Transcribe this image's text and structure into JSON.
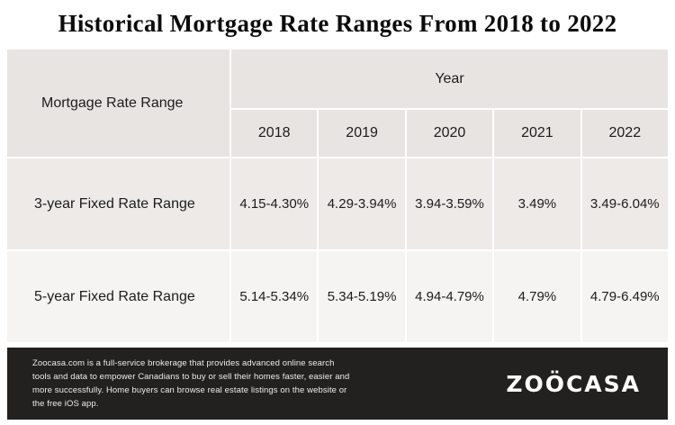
{
  "title": "Historical Mortgage Rate Ranges From 2018 to 2022",
  "chart_data": {
    "type": "table",
    "title": "Historical Mortgage Rate Ranges From 2018 to 2022",
    "row_header": "Mortgage Rate Range",
    "column_group": "Year",
    "columns": [
      "2018",
      "2019",
      "2020",
      "2021",
      "2022"
    ],
    "rows": [
      {
        "label": "3-year Fixed Rate Range",
        "values": [
          "4.15-4.30%",
          "4.29-3.94%",
          "3.94-3.59%",
          "3.49%",
          "3.49-6.04%"
        ]
      },
      {
        "label": "5-year Fixed Rate Range",
        "values": [
          "5.14-5.34%",
          "5.34-5.19%",
          "4.94-4.79%",
          "4.79%",
          "4.79-6.49%"
        ]
      }
    ]
  },
  "footer": {
    "description": "Zoocasa.com is a full-service brokerage that provides advanced online search tools and data to empower Canadians to buy or sell their homes faster, easier and more successfully. Home buyers can browse real estate listings on the website or the free iOS app.",
    "logo": "ZOÖCASA"
  },
  "colors": {
    "header_bg": "#e8e4e1",
    "row1_bg": "#edeae8",
    "row2_bg": "#f5f4f2",
    "footer_bg": "#222120"
  }
}
